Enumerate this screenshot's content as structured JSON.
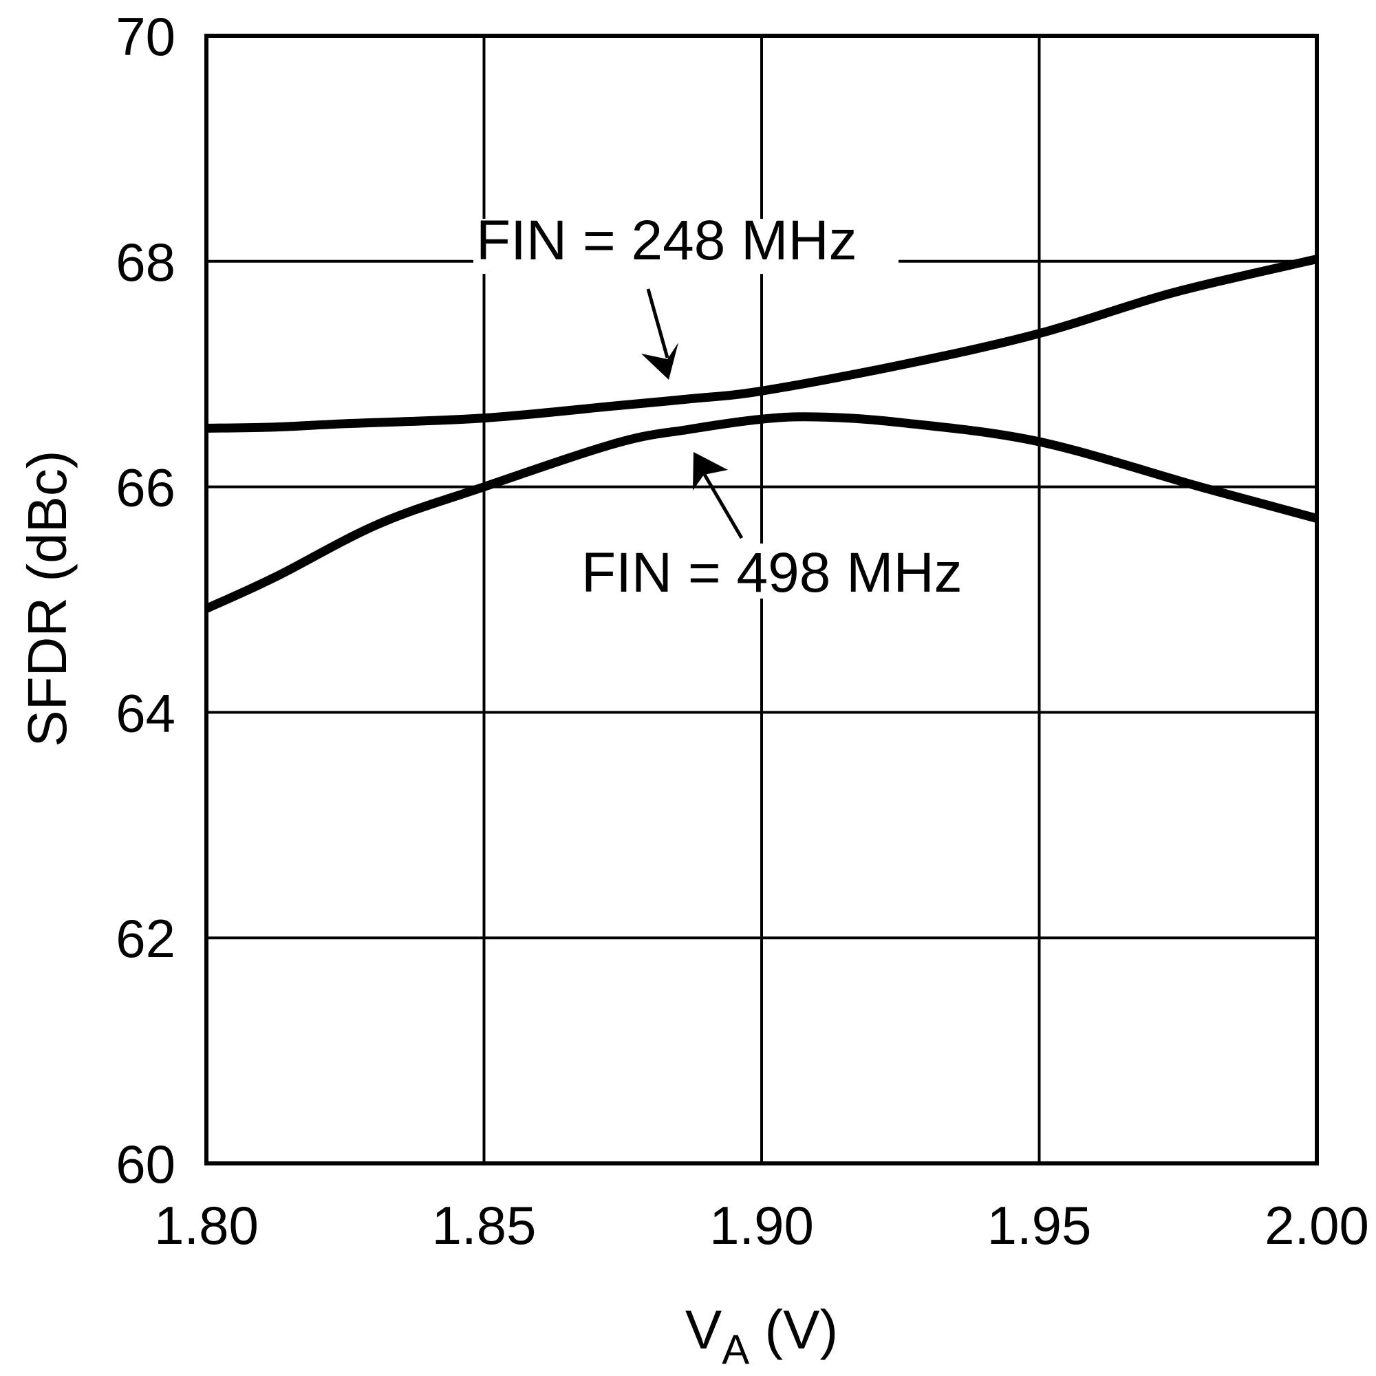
{
  "chart_data": {
    "type": "line",
    "title": "",
    "xlabel": "V_A (V)",
    "xlabel_main": "V",
    "xlabel_sub": "A",
    "xlabel_unit": " (V)",
    "ylabel": "SFDR (dBc)",
    "xlim": [
      1.8,
      2.0
    ],
    "ylim": [
      60,
      70
    ],
    "x_ticks": [
      1.8,
      1.85,
      1.9,
      1.95,
      2.0
    ],
    "x_tick_labels": [
      "1.80",
      "1.85",
      "1.90",
      "1.95",
      "2.00"
    ],
    "y_ticks": [
      60,
      62,
      64,
      66,
      68,
      70
    ],
    "y_tick_labels": [
      "60",
      "62",
      "64",
      "66",
      "68",
      "70"
    ],
    "grid": true,
    "legend": "none (inline annotations with arrows)",
    "series": [
      {
        "name": "FIN = 248 MHz",
        "x": [
          1.8,
          1.8124,
          1.825,
          1.85,
          1.874,
          1.887,
          1.9,
          1.925,
          1.95,
          1.974,
          2.0
        ],
        "values": [
          66.52,
          66.53,
          66.56,
          66.61,
          66.72,
          66.78,
          66.85,
          67.08,
          67.36,
          67.72,
          68.02
        ]
      },
      {
        "name": "FIN = 498 MHz",
        "x": [
          1.8,
          1.8124,
          1.831,
          1.85,
          1.874,
          1.887,
          1.9,
          1.91,
          1.925,
          1.95,
          1.979,
          2.0
        ],
        "values": [
          64.92,
          65.2,
          65.67,
          66.0,
          66.39,
          66.51,
          66.6,
          66.62,
          66.57,
          66.4,
          66.0,
          65.72
        ]
      }
    ],
    "annotations": [
      {
        "text": "FIN = 248 MHz",
        "arrow_to_series": "FIN = 248 MHz"
      },
      {
        "text": "FIN = 498 MHz",
        "arrow_to_series": "FIN = 498 MHz"
      }
    ]
  },
  "labels": {
    "annot_248": "FIN = 248 MHz",
    "annot_498": "FIN = 498 MHz",
    "ylabel": "SFDR (dBc)",
    "xlabel_main": "V",
    "xlabel_sub": "A",
    "xlabel_unit": " (V)"
  },
  "style": {
    "line_color": "#000000",
    "grid_color": "#000000",
    "background": "#ffffff"
  }
}
